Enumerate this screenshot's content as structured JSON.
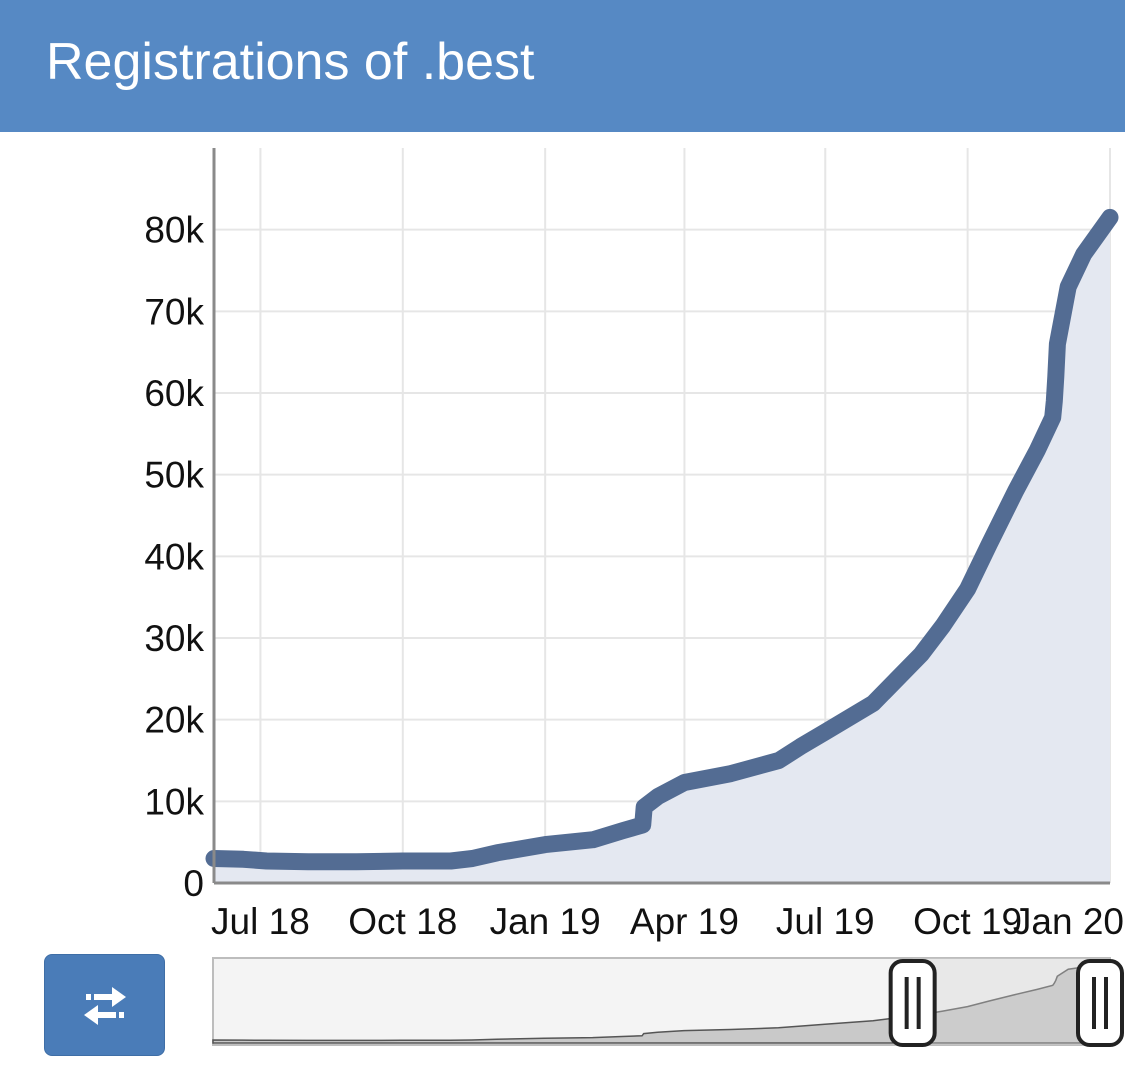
{
  "header": {
    "title": "Registrations of .best",
    "background_color": "#5689c4"
  },
  "chart_data": {
    "type": "area",
    "title": "Registrations of .best",
    "xlabel": "",
    "ylabel": "",
    "x_tick_labels": [
      "Jul 18",
      "Oct 18",
      "Jan 19",
      "Apr 19",
      "Jul 19",
      "Oct 19",
      "Jan 20"
    ],
    "x_tick_dates": [
      "2018-07-01",
      "2018-10-01",
      "2019-01-01",
      "2019-04-01",
      "2019-07-01",
      "2019-10-01",
      "2020-01-01"
    ],
    "xlim": [
      "2018-06-01",
      "2020-01-01"
    ],
    "y_tick_labels": [
      "0",
      "10k",
      "20k",
      "30k",
      "40k",
      "50k",
      "60k",
      "70k",
      "80k"
    ],
    "y_tick_values": [
      0,
      10000,
      20000,
      30000,
      40000,
      50000,
      60000,
      70000,
      80000
    ],
    "ylim": [
      0,
      90000
    ],
    "grid": true,
    "line_color": "#536c93",
    "fill_color": "#e4e8f1",
    "series": [
      {
        "x": [
          "2018-06-01",
          "2018-06-20",
          "2018-07-05",
          "2018-08-01",
          "2018-09-01",
          "2018-10-01",
          "2018-11-01",
          "2018-11-15",
          "2018-12-01",
          "2019-01-01",
          "2019-02-01",
          "2019-02-20",
          "2019-03-05",
          "2019-03-06",
          "2019-03-15",
          "2019-04-01",
          "2019-05-01",
          "2019-06-01",
          "2019-06-15",
          "2019-07-01",
          "2019-08-01",
          "2019-09-01",
          "2019-09-15",
          "2019-10-01",
          "2019-10-15",
          "2019-11-01",
          "2019-11-15",
          "2019-11-25",
          "2019-11-26",
          "2019-11-27",
          "2019-11-28",
          "2019-12-05",
          "2019-12-15",
          "2020-01-01"
        ],
        "y": [
          3000,
          2900,
          2700,
          2600,
          2600,
          2700,
          2700,
          3000,
          3700,
          4700,
          5300,
          6400,
          7100,
          9300,
          10600,
          12300,
          13400,
          15000,
          16700,
          18500,
          22000,
          28000,
          31500,
          36000,
          41500,
          48000,
          53000,
          57000,
          59000,
          62000,
          66000,
          73000,
          77000,
          81500
        ]
      }
    ]
  },
  "navigator": {
    "range_start_fraction": 0.78,
    "range_end_fraction": 1.0
  },
  "controls": {
    "swap_icon": "swap-arrows-icon",
    "button_color": "#4a7cb8"
  }
}
